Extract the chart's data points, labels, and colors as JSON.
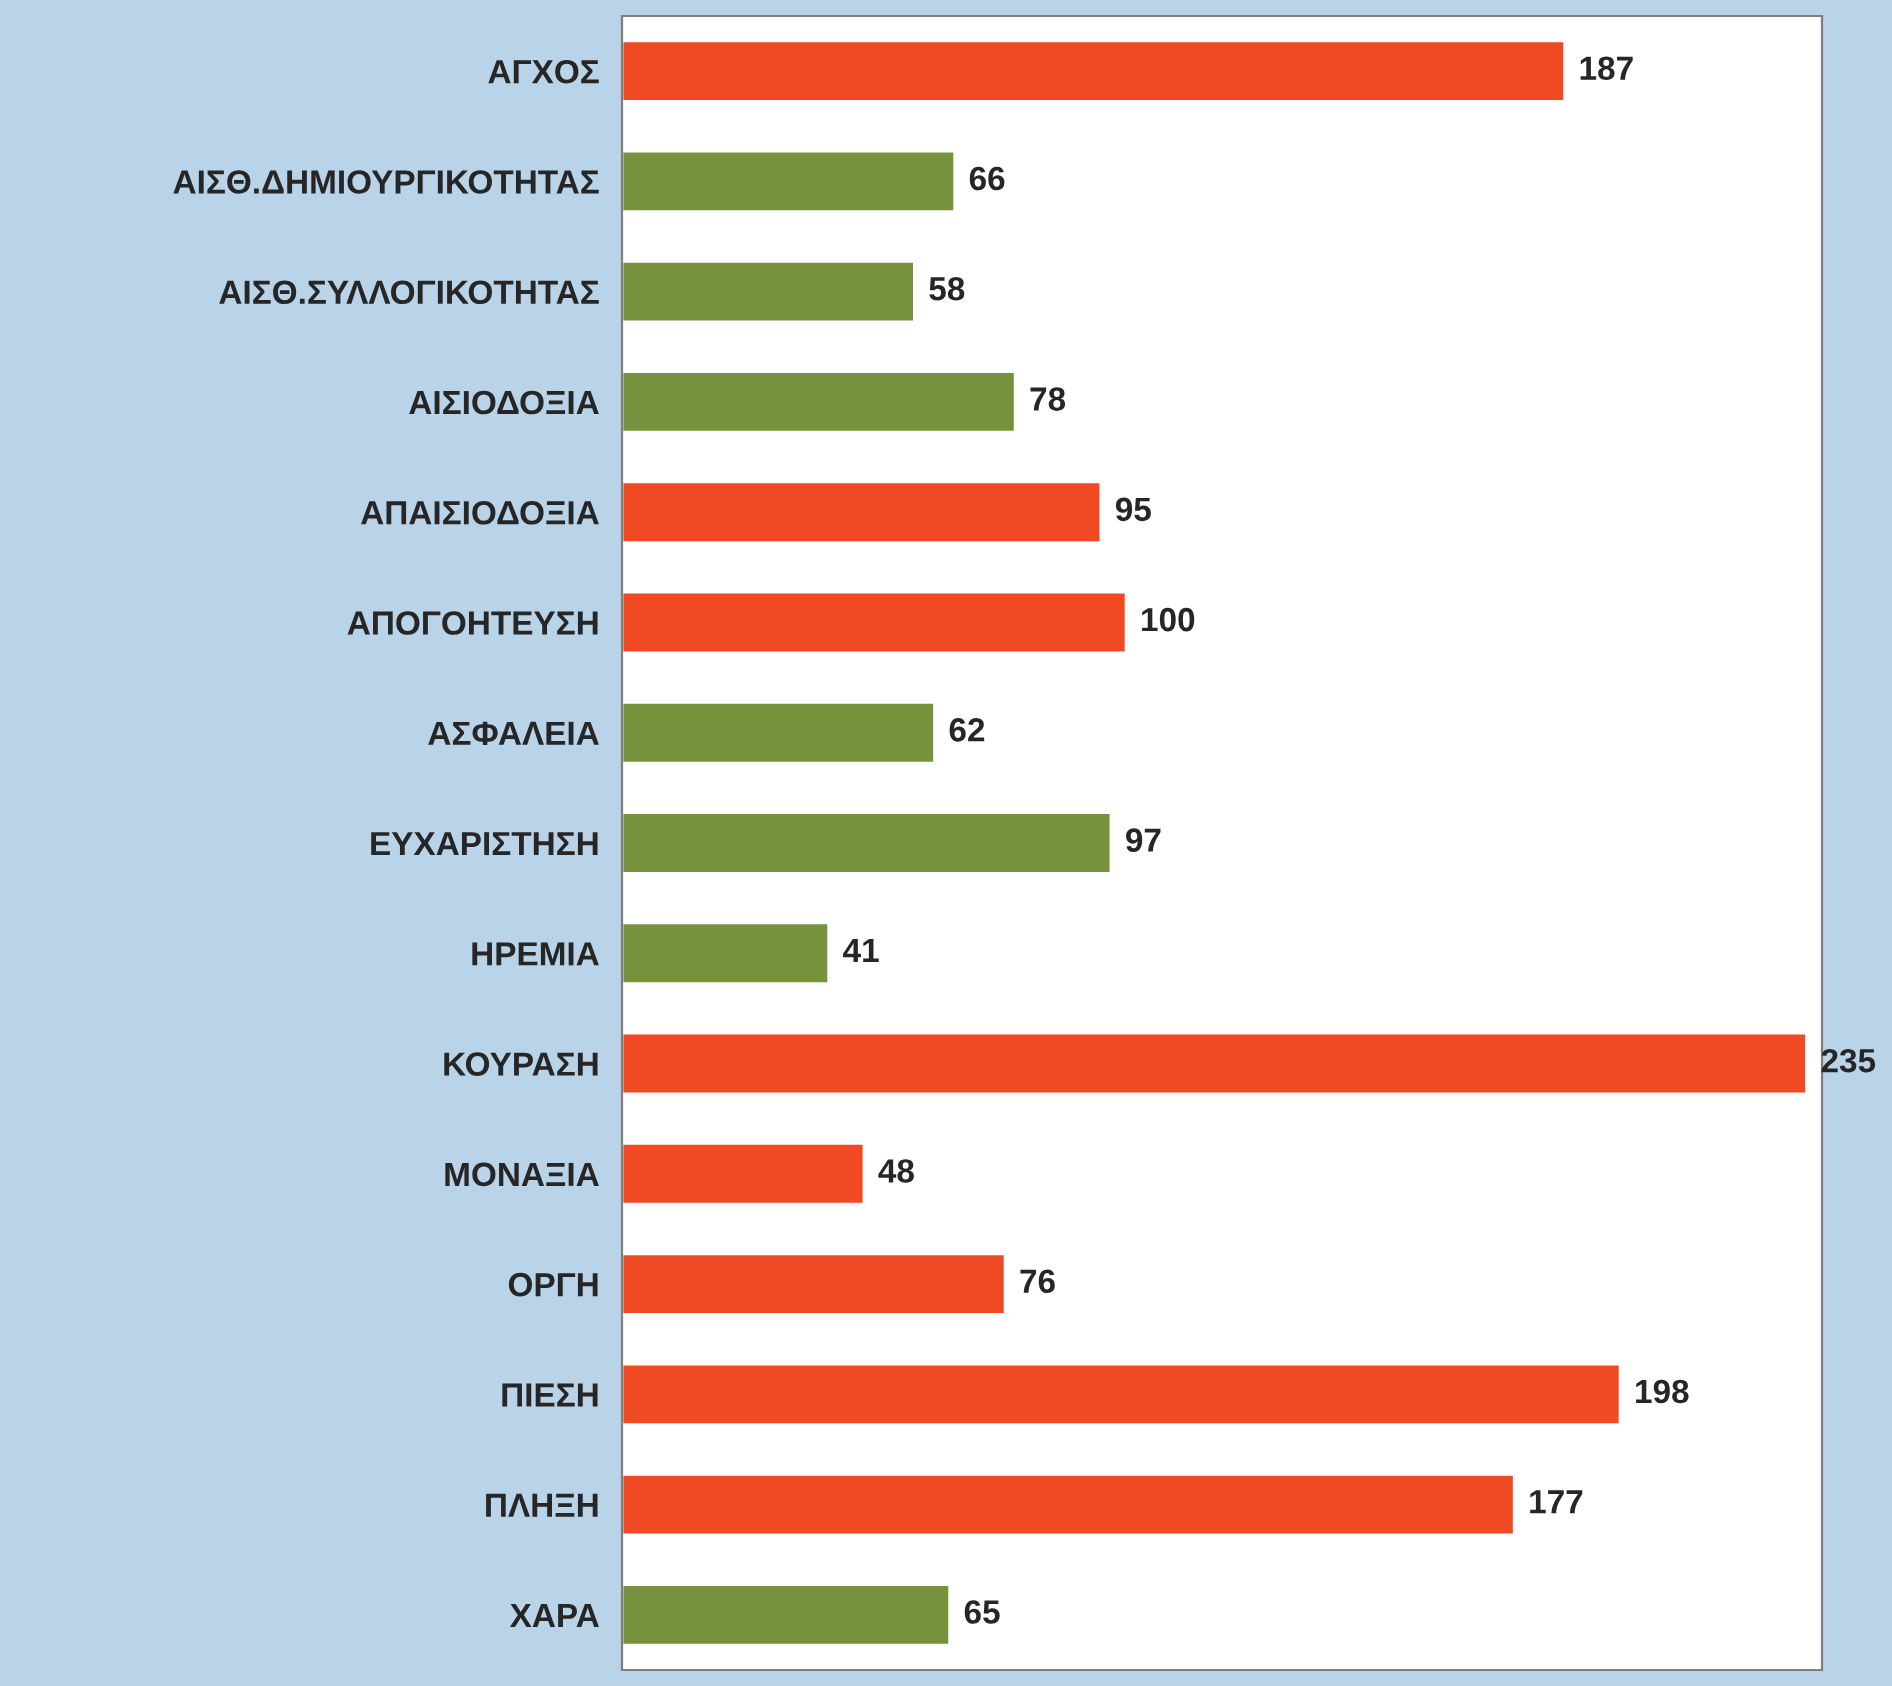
{
  "chart_data": {
    "type": "bar",
    "orientation": "horizontal",
    "data_labels": true,
    "grid": false,
    "categories": [
      "ΑΓΧΟΣ",
      "ΑΙΣΘ.ΔΗΜΙΟΥΡΓΙΚΟΤΗΤΑΣ",
      "ΑΙΣΘ.ΣΥΛΛΟΓΙΚΟΤΗΤΑΣ",
      "ΑΙΣΙΟΔΟΞΙΑ",
      "ΑΠΑΙΣΙΟΔΟΞΙΑ",
      "ΑΠΟΓΟΗΤΕΥΣΗ",
      "ΑΣΦΑΛΕΙΑ",
      "ΕΥΧΑΡΙΣΤΗΣΗ",
      "ΗΡΕΜΙΑ",
      "ΚΟΥΡΑΣΗ",
      "ΜΟΝΑΞΙΑ",
      "ΟΡΓΗ",
      "ΠΙΕΣΗ",
      "ΠΛΗΞΗ",
      "ΧΑΡΑ"
    ],
    "values": [
      187,
      66,
      58,
      78,
      95,
      100,
      62,
      97,
      41,
      235,
      48,
      76,
      198,
      177,
      65
    ],
    "colors": [
      "#ef4a24",
      "#76923c",
      "#76923c",
      "#76923c",
      "#ef4a24",
      "#ef4a24",
      "#76923c",
      "#76923c",
      "#76923c",
      "#ef4a24",
      "#ef4a24",
      "#ef4a24",
      "#ef4a24",
      "#ef4a24",
      "#76923c"
    ]
  }
}
